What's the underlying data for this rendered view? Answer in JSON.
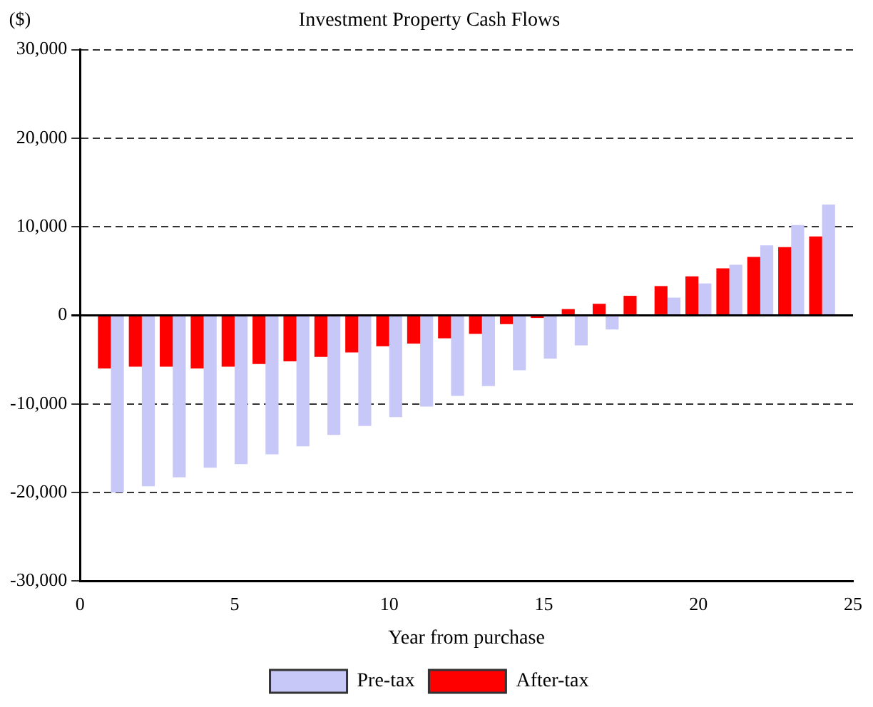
{
  "chart_data": {
    "type": "bar",
    "title": "Investment Property Cash Flows",
    "xlabel": "Year from purchase",
    "ylabel": "($)",
    "x": [
      1,
      2,
      3,
      4,
      5,
      6,
      7,
      8,
      9,
      10,
      11,
      12,
      13,
      14,
      15,
      16,
      17,
      18,
      19,
      20,
      21,
      22,
      23,
      24
    ],
    "series": [
      {
        "name": "Pre-tax",
        "color": "#c8c8f8",
        "values": [
          -20000,
          -19300,
          -18300,
          -17200,
          -16800,
          -15700,
          -14800,
          -13500,
          -12500,
          -11500,
          -10300,
          -9100,
          -8000,
          -6200,
          -4900,
          -3400,
          -1600,
          null,
          2000,
          3600,
          5700,
          7900,
          10200,
          12500
        ]
      },
      {
        "name": "After-tax",
        "color": "#ff0000",
        "values": [
          -6000,
          -5800,
          -5800,
          -6000,
          -5800,
          -5500,
          -5200,
          -4700,
          -4200,
          -3500,
          -3200,
          -2600,
          -2100,
          -1000,
          -300,
          700,
          1300,
          2200,
          3300,
          4400,
          5300,
          6600,
          7700,
          8900
        ]
      }
    ],
    "xlim": [
      0,
      25
    ],
    "xticks": [
      0,
      5,
      10,
      15,
      20,
      25
    ],
    "ylim": [
      -30000,
      30000
    ],
    "yticks": [
      {
        "value": -30000,
        "label": "-30,000"
      },
      {
        "value": -20000,
        "label": "-20,000"
      },
      {
        "value": -10000,
        "label": "-10,000"
      },
      0,
      {
        "value": 10000,
        "label": "10,000"
      },
      {
        "value": 20000,
        "label": "20,000"
      },
      {
        "value": 30000,
        "label": "30,000"
      }
    ],
    "grid": "y",
    "legend": "bottom"
  }
}
